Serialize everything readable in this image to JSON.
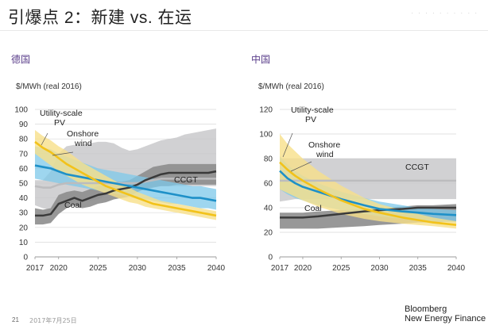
{
  "slide": {
    "title": "引爆点 2：新建 vs. 在运",
    "page_number": "21",
    "date": "2017年7月25日",
    "brand_line1": "Bloomberg",
    "brand_line2": "New Energy Finance"
  },
  "colors": {
    "utility_pv": "#f2c21a",
    "utility_pv_band": "#f7e08a",
    "onshore_wind": "#1e90c8",
    "onshore_wind_band": "#7ec8ea",
    "ccgt": "#c9c9cb",
    "ccgt_line": "#bcbcbe",
    "coal": "#8d8d8d",
    "coal_line": "#3a3a3a",
    "panel_title": "#5a3d8a"
  },
  "chart_data": [
    {
      "type": "area",
      "panel_title": "德国",
      "ylabel": "$/MWh (real 2016)",
      "ylim": [
        0,
        100
      ],
      "yticks": [
        0,
        10,
        20,
        30,
        40,
        50,
        60,
        70,
        80,
        90,
        100
      ],
      "xlim": [
        2017,
        2040
      ],
      "xticks": [
        2017,
        2020,
        2025,
        2030,
        2035,
        2040
      ],
      "series": [
        {
          "name": "CCGT",
          "label": "CCGT",
          "style": "ccgt",
          "x": [
            2017,
            2018,
            2019,
            2020,
            2021,
            2022,
            2023,
            2024,
            2025,
            2026,
            2027,
            2028,
            2029,
            2030,
            2031,
            2032,
            2033,
            2034,
            2035,
            2036,
            2037,
            2038,
            2039,
            2040
          ],
          "low": [
            35,
            33,
            32,
            35,
            36,
            37,
            38,
            38,
            39,
            42,
            43,
            44,
            45,
            46,
            47,
            48,
            48,
            48,
            48,
            48,
            48,
            48,
            48,
            48
          ],
          "high": [
            52,
            52,
            58,
            70,
            75,
            76,
            76,
            77,
            78,
            78,
            77,
            74,
            72,
            73,
            75,
            77,
            79,
            80,
            81,
            83,
            84,
            85,
            86,
            87
          ],
          "mid": [
            48,
            47,
            47,
            49,
            50,
            50,
            50,
            50,
            50,
            50,
            50,
            50,
            50,
            50,
            51,
            52,
            53,
            53,
            53,
            53,
            53,
            53,
            53,
            53
          ]
        },
        {
          "name": "Coal",
          "label": "Coal",
          "style": "coal",
          "x": [
            2017,
            2018,
            2019,
            2020,
            2021,
            2022,
            2023,
            2024,
            2025,
            2026,
            2027,
            2028,
            2029,
            2030,
            2031,
            2032,
            2033,
            2034,
            2035,
            2036,
            2037,
            2038,
            2039,
            2040
          ],
          "low": [
            22,
            22,
            23,
            29,
            33,
            35,
            33,
            34,
            36,
            37,
            39,
            40,
            41,
            44,
            46,
            47,
            48,
            48,
            49,
            49,
            49,
            49,
            49,
            49
          ],
          "high": [
            33,
            32,
            33,
            42,
            44,
            45,
            44,
            46,
            48,
            49,
            51,
            51,
            52,
            55,
            58,
            61,
            62,
            63,
            63,
            63,
            63,
            63,
            63,
            63
          ],
          "mid": [
            28,
            28,
            29,
            36,
            38,
            40,
            38,
            40,
            42,
            43,
            45,
            46,
            47,
            49,
            52,
            54,
            56,
            57,
            57,
            57,
            57,
            57,
            57,
            58
          ]
        },
        {
          "name": "Onshore wind",
          "label": "Onshore\nwind",
          "style": "wind",
          "x": [
            2017,
            2018,
            2019,
            2020,
            2021,
            2022,
            2023,
            2024,
            2025,
            2026,
            2027,
            2028,
            2029,
            2030,
            2031,
            2032,
            2033,
            2034,
            2035,
            2036,
            2037,
            2038,
            2039,
            2040
          ],
          "low": [
            53,
            52,
            51,
            50,
            49,
            48,
            47,
            46,
            45,
            44,
            43,
            42,
            41,
            40,
            39,
            38,
            37,
            36,
            36,
            35,
            34,
            33,
            33,
            32
          ],
          "high": [
            75,
            74,
            73,
            70,
            68,
            66,
            64,
            62,
            60,
            59,
            58,
            57,
            56,
            55,
            54,
            53,
            52,
            51,
            50,
            49,
            48,
            48,
            47,
            46
          ],
          "mid": [
            62,
            61,
            60,
            58,
            56,
            55,
            54,
            53,
            52,
            51,
            50,
            49,
            48,
            47,
            46,
            45,
            44,
            43,
            42,
            41,
            40,
            40,
            39,
            38
          ]
        },
        {
          "name": "Utility-scale PV",
          "label": "Utility-scale\nPV",
          "style": "pv",
          "x": [
            2017,
            2018,
            2019,
            2020,
            2021,
            2022,
            2023,
            2024,
            2025,
            2026,
            2027,
            2028,
            2029,
            2030,
            2031,
            2032,
            2033,
            2034,
            2035,
            2036,
            2037,
            2038,
            2039,
            2040
          ],
          "low": [
            70,
            66,
            62,
            58,
            55,
            52,
            49,
            47,
            45,
            43,
            41,
            39,
            37,
            36,
            34,
            33,
            32,
            31,
            30,
            29,
            28,
            27,
            26,
            25
          ],
          "high": [
            86,
            82,
            79,
            75,
            72,
            68,
            64,
            61,
            58,
            55,
            52,
            49,
            47,
            44,
            42,
            40,
            38,
            37,
            36,
            35,
            34,
            33,
            32,
            31
          ],
          "mid": [
            78,
            74,
            71,
            67,
            63,
            60,
            57,
            54,
            51,
            48,
            46,
            44,
            42,
            40,
            38,
            36,
            35,
            34,
            33,
            32,
            31,
            30,
            29,
            28
          ]
        }
      ]
    },
    {
      "type": "area",
      "panel_title": "中国",
      "ylabel": "$/MWh (real 2016)",
      "ylim": [
        0,
        120
      ],
      "yticks": [
        0,
        20,
        40,
        60,
        80,
        100,
        120
      ],
      "xlim": [
        2017,
        2040
      ],
      "xticks": [
        2017,
        2020,
        2025,
        2030,
        2035,
        2040
      ],
      "series": [
        {
          "name": "CCGT",
          "label": "CCGT",
          "style": "ccgt",
          "x": [
            2017,
            2018,
            2019,
            2020,
            2022,
            2025,
            2028,
            2030,
            2033,
            2035,
            2037,
            2040
          ],
          "low": [
            45,
            46,
            47,
            47,
            47,
            47,
            47,
            47,
            47,
            47,
            47,
            47
          ],
          "high": [
            80,
            80,
            80,
            80,
            80,
            80,
            80,
            80,
            80,
            80,
            80,
            80
          ],
          "mid": [
            62,
            62,
            62,
            62,
            62,
            62,
            62,
            62,
            62,
            62,
            62,
            62
          ]
        },
        {
          "name": "Coal",
          "label": "Coal",
          "style": "coal",
          "x": [
            2017,
            2018,
            2019,
            2020,
            2022,
            2025,
            2028,
            2030,
            2033,
            2035,
            2037,
            2040
          ],
          "low": [
            23,
            23,
            23,
            23,
            23,
            24,
            25,
            26,
            27,
            28,
            28,
            29
          ],
          "high": [
            36,
            36,
            36,
            36,
            37,
            38,
            39,
            40,
            41,
            42,
            42,
            43
          ],
          "mid": [
            32,
            32,
            32,
            32,
            33,
            35,
            37,
            38,
            39,
            40,
            40,
            40
          ]
        },
        {
          "name": "Onshore wind",
          "label": "Onshore\nwind",
          "style": "wind",
          "x": [
            2017,
            2018,
            2019,
            2020,
            2022,
            2025,
            2028,
            2030,
            2033,
            2035,
            2037,
            2040
          ],
          "low": [
            55,
            51,
            48,
            46,
            42,
            38,
            35,
            33,
            31,
            30,
            29,
            28
          ],
          "high": [
            82,
            75,
            70,
            66,
            60,
            53,
            48,
            45,
            42,
            40,
            39,
            38
          ],
          "mid": [
            70,
            64,
            60,
            57,
            53,
            47,
            42,
            39,
            37,
            36,
            35,
            34
          ]
        },
        {
          "name": "Utility-scale PV",
          "label": "Utility-scale\nPV",
          "style": "pv",
          "x": [
            2017,
            2018,
            2019,
            2020,
            2022,
            2025,
            2028,
            2030,
            2033,
            2035,
            2037,
            2040
          ],
          "low": [
            55,
            52,
            49,
            46,
            41,
            35,
            31,
            29,
            27,
            26,
            25,
            23
          ],
          "high": [
            100,
            92,
            86,
            80,
            70,
            58,
            48,
            43,
            38,
            35,
            32,
            29
          ],
          "mid": [
            77,
            71,
            66,
            62,
            55,
            46,
            39,
            36,
            32,
            30,
            28,
            26
          ]
        }
      ]
    }
  ]
}
